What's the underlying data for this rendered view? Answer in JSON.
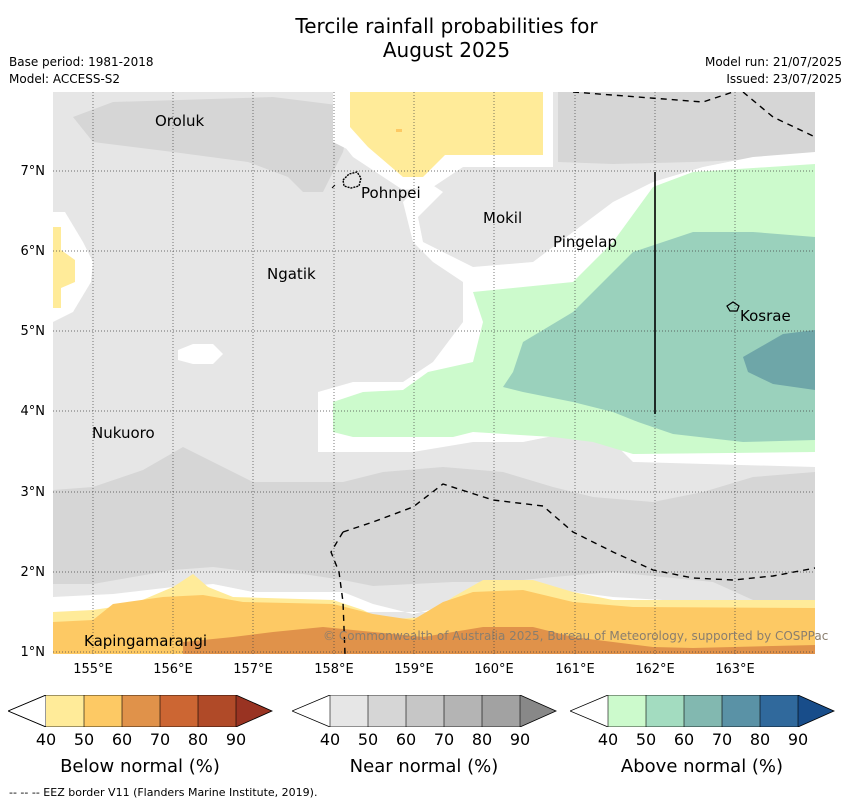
{
  "header": {
    "title_line1": "Tercile rainfall probabilities for",
    "title_line2": "August 2025",
    "base_period": "Base period: 1981-2018",
    "model": "Model: ACCESS-S2",
    "model_run": "Model run: 21/07/2025",
    "issued": "Issued: 23/07/2025"
  },
  "map": {
    "lat_labels": [
      "7°N",
      "6°N",
      "5°N",
      "4°N",
      "3°N",
      "2°N",
      "1°N"
    ],
    "lon_labels": [
      "155°E",
      "156°E",
      "157°E",
      "158°E",
      "159°E",
      "160°E",
      "161°E",
      "162°E",
      "163°E"
    ],
    "places": [
      "Oroluk",
      "Pohnpei",
      "Mokil",
      "Pingelap",
      "Ngatik",
      "Kosrae",
      "Nukuoro",
      "Kapingamarangi"
    ],
    "copyright": "© Commonwealth of Australia 2025, Bureau of Meteorology, supported by COSPPac"
  },
  "colorbars": [
    {
      "title": "Below normal (%)",
      "ticks": [
        "40",
        "50",
        "60",
        "70",
        "80",
        "90"
      ],
      "colors": [
        "#ffeb99",
        "#fdc964",
        "#e0924a",
        "#cc6633",
        "#b04a28",
        "#993322"
      ]
    },
    {
      "title": "Near normal (%)",
      "ticks": [
        "40",
        "50",
        "60",
        "70",
        "80",
        "90"
      ],
      "colors": [
        "#e6e6e6",
        "#d6d6d6",
        "#c6c6c6",
        "#b4b4b4",
        "#a2a2a2",
        "#888888"
      ]
    },
    {
      "title": "Above normal (%)",
      "ticks": [
        "40",
        "50",
        "60",
        "70",
        "80",
        "90"
      ],
      "colors": [
        "#ccfacc",
        "#a3dcc0",
        "#82b8b0",
        "#5a92a6",
        "#30699c",
        "#184d8a"
      ]
    }
  ],
  "footer": "--  --  -- EEZ border V11 (Flanders Marine Institute, 2019)."
}
